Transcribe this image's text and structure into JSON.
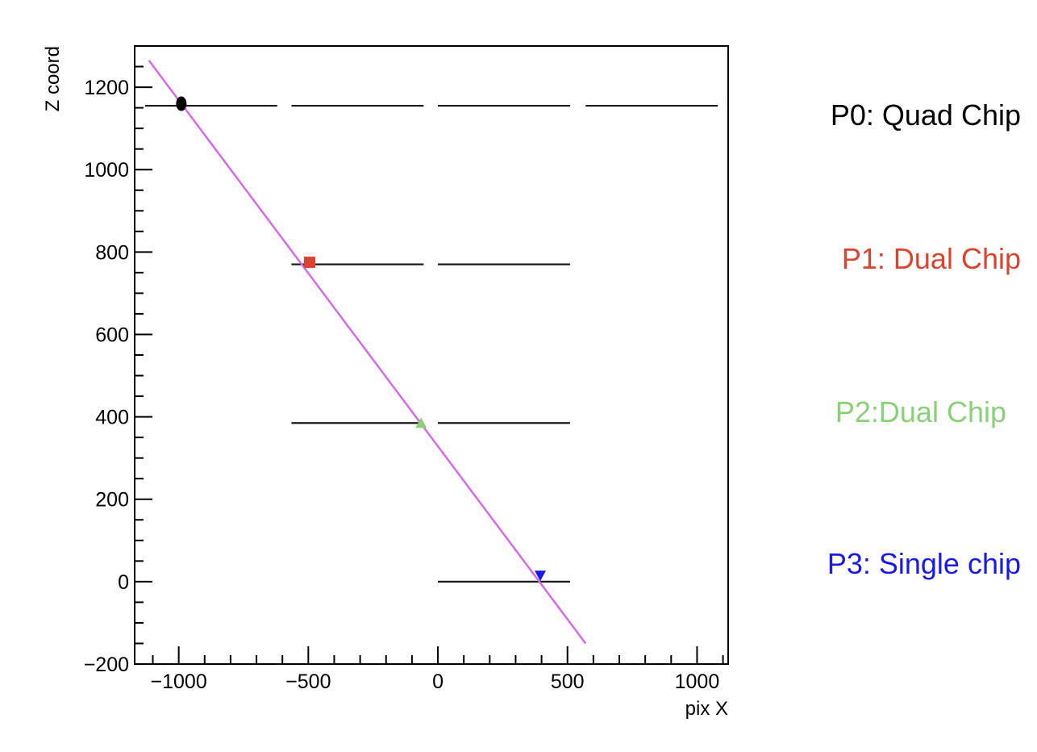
{
  "chart_data": {
    "type": "scatter",
    "xlabel": "pix X",
    "ylabel": "Z coord",
    "xlim": [
      -1170,
      1120
    ],
    "ylim": [
      -200,
      1300
    ],
    "x_ticks": [
      -1000,
      -500,
      0,
      500,
      1000
    ],
    "y_ticks": [
      -200,
      0,
      200,
      400,
      600,
      800,
      1000,
      1200
    ],
    "x_tick_labels": [
      "−1000",
      "−500",
      "0",
      "500",
      "1000"
    ],
    "y_tick_labels": [
      "−200",
      "0",
      "200",
      "400",
      "600",
      "800",
      "1000",
      "1200"
    ],
    "series": [
      {
        "name": "P0: Quad Chip",
        "marker": "circle",
        "color": "#000000",
        "x": [
          -990
        ],
        "y": [
          1160
        ]
      },
      {
        "name": "P1: Dual Chip",
        "marker": "square",
        "color": "#d9432f",
        "x": [
          -495
        ],
        "y": [
          775
        ]
      },
      {
        "name": "P2:Dual Chip",
        "marker": "triangle-up",
        "color": "#8bcf78",
        "x": [
          -65
        ],
        "y": [
          385
        ]
      },
      {
        "name": "P3: Single chip",
        "marker": "triangle-down",
        "color": "#1a1ae6",
        "x": [
          395
        ],
        "y": [
          15
        ]
      }
    ],
    "fit_line": {
      "color": "#d36be8",
      "x": [
        -1115,
        570
      ],
      "y": [
        1265,
        -150
      ]
    },
    "planes": [
      {
        "y": 1155,
        "segments": [
          [
            -1130,
            -620
          ],
          [
            -565,
            -55
          ],
          [
            0,
            510
          ],
          [
            570,
            1080
          ]
        ]
      },
      {
        "y": 770,
        "segments": [
          [
            -565,
            -55
          ],
          [
            0,
            510
          ]
        ]
      },
      {
        "y": 385,
        "segments": [
          [
            -565,
            -55
          ],
          [
            0,
            510
          ]
        ]
      },
      {
        "y": 0,
        "segments": [
          [
            0,
            510
          ]
        ]
      }
    ]
  }
}
